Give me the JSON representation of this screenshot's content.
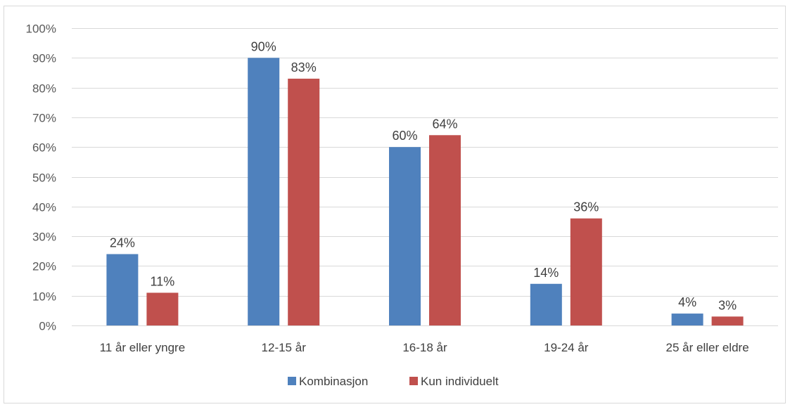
{
  "chart_data": {
    "type": "bar",
    "categories": [
      "11 år eller yngre",
      "12-15 år",
      "16-18 år",
      "19-24 år",
      "25 år eller eldre"
    ],
    "series": [
      {
        "name": "Kombinasjon",
        "values": [
          24,
          90,
          60,
          14,
          4
        ],
        "labels": [
          "24%",
          "90%",
          "60%",
          "14%",
          "4%"
        ],
        "color": "#4f81bd"
      },
      {
        "name": "Kun individuelt",
        "values": [
          11,
          83,
          64,
          36,
          3
        ],
        "labels": [
          "11%",
          "83%",
          "64%",
          "36%",
          "3%"
        ],
        "color": "#c0504d"
      }
    ],
    "ylim": [
      0,
      100
    ],
    "yticks": [
      0,
      10,
      20,
      30,
      40,
      50,
      60,
      70,
      80,
      90,
      100
    ],
    "ytick_labels": [
      "0%",
      "10%",
      "20%",
      "30%",
      "40%",
      "50%",
      "60%",
      "70%",
      "80%",
      "90%",
      "100%"
    ],
    "grid": true,
    "legend_position": "bottom",
    "gridline_color": "#d9d9d9"
  }
}
